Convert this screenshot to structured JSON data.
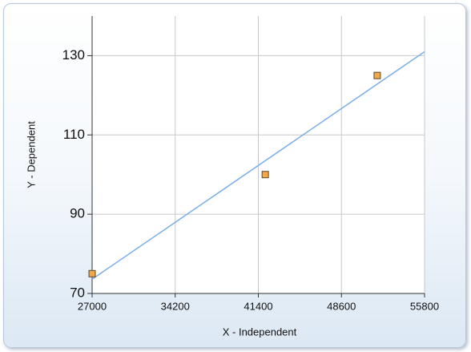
{
  "chart_data": {
    "type": "scatter",
    "x_label": "X - Independent",
    "y_label": "Y - Dependent",
    "xlim": [
      27000,
      55800
    ],
    "xticks": [
      27000,
      34200,
      41400,
      48600,
      55800
    ],
    "ylim": [
      70,
      140
    ],
    "yticks": [
      70,
      90,
      110,
      130
    ],
    "grid": true,
    "series": [
      {
        "color": "#f0a848",
        "x": [
          27000,
          42000,
          51700
        ],
        "values": [
          75,
          100,
          125
        ]
      }
    ],
    "trend_line": {
      "color": "#7aaee8",
      "x": [
        27000,
        55800
      ],
      "values": [
        73.6,
        131.0
      ]
    }
  }
}
